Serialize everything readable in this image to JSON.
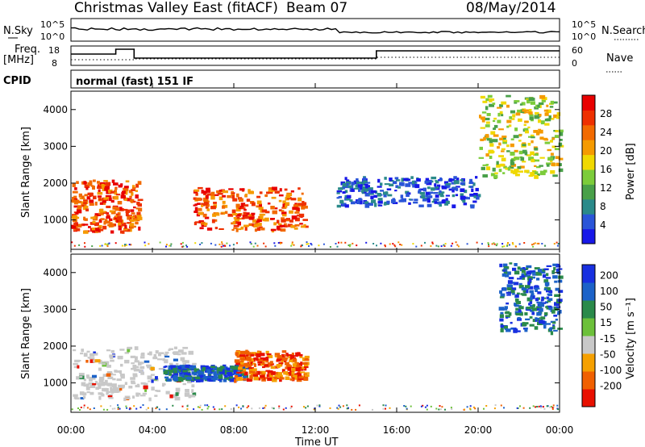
{
  "header": {
    "station": "Christmas Valley East (fitACF)",
    "beam": "Beam 07",
    "date": "08/May/2014"
  },
  "panels": {
    "nsky_label": "N.Sky",
    "nsearch_label": "N.Search",
    "freq_label": "Freq.",
    "freq_unit": "[MHz]",
    "nave_label": "Nave",
    "cpid_label": "CPID",
    "cpid_value": "normal (fast) 151 IF",
    "nsky_ticks": [
      "10^5",
      "10^0"
    ],
    "nsearch_ticks": [
      "10^5",
      "10^0"
    ],
    "freq_ticks": [
      "18",
      "8"
    ],
    "nave_ticks": [
      "60",
      "0"
    ]
  },
  "chart_data": [
    {
      "type": "heatmap",
      "panel": "power",
      "ylabel": "Slant Range [km]",
      "xlabel": "Time UT",
      "x_ticks": [
        "00:00",
        "04:00",
        "08:00",
        "12:00",
        "16:00",
        "20:00",
        "00:00"
      ],
      "y_ticks": [
        1000,
        2000,
        3000,
        4000
      ],
      "ylim": [
        200,
        4500
      ],
      "xlim_hours": [
        0,
        24
      ],
      "colorbar": {
        "label": "Power [dB]",
        "ticks": [
          4,
          8,
          12,
          16,
          20,
          24,
          28
        ],
        "colors": [
          "#1818e8",
          "#2a55d8",
          "#2a8a8a",
          "#49a049",
          "#7ccc3a",
          "#f0d800",
          "#f59a00",
          "#f26a00",
          "#ee3000",
          "#e80000"
        ]
      },
      "features": [
        {
          "hours": [
            0,
            3.3
          ],
          "range_km": [
            700,
            2100
          ],
          "level": "high"
        },
        {
          "hours": [
            6,
            11.5
          ],
          "range_km": [
            750,
            1900
          ],
          "level": "high"
        },
        {
          "hours": [
            13,
            20
          ],
          "range_km": [
            1400,
            2200
          ],
          "level": "low"
        },
        {
          "hours": [
            20,
            24
          ],
          "range_km": [
            2200,
            4400
          ],
          "level": "medium"
        }
      ]
    },
    {
      "type": "heatmap",
      "panel": "velocity",
      "ylabel": "Slant Range [km]",
      "xlabel": "Time UT",
      "x_ticks": [
        "00:00",
        "04:00",
        "08:00",
        "12:00",
        "16:00",
        "20:00",
        "00:00"
      ],
      "y_ticks": [
        1000,
        2000,
        3000,
        4000
      ],
      "ylim": [
        200,
        4500
      ],
      "xlim_hours": [
        0,
        24
      ],
      "colorbar": {
        "label": "Velocity [m s⁻¹]",
        "ticks": [
          200,
          100,
          50,
          15,
          -15,
          -50,
          -100,
          -200
        ],
        "colors": [
          "#1830e0",
          "#1c62c8",
          "#2a8a4a",
          "#6cc03a",
          "#c8c8c8",
          "#f5a000",
          "#f06000",
          "#e81000"
        ]
      },
      "features": [
        {
          "hours": [
            0,
            6
          ],
          "range_km": [
            600,
            2000
          ],
          "level": "near-zero"
        },
        {
          "hours": [
            4.5,
            8.5
          ],
          "range_km": [
            1100,
            1500
          ],
          "level": "positive"
        },
        {
          "hours": [
            8,
            11.5
          ],
          "range_km": [
            1100,
            1900
          ],
          "level": "negative"
        },
        {
          "hours": [
            21,
            24
          ],
          "range_km": [
            2400,
            4300
          ],
          "level": "positive"
        }
      ]
    }
  ],
  "colors": {
    "axis": "#000000",
    "background": "#ffffff"
  }
}
